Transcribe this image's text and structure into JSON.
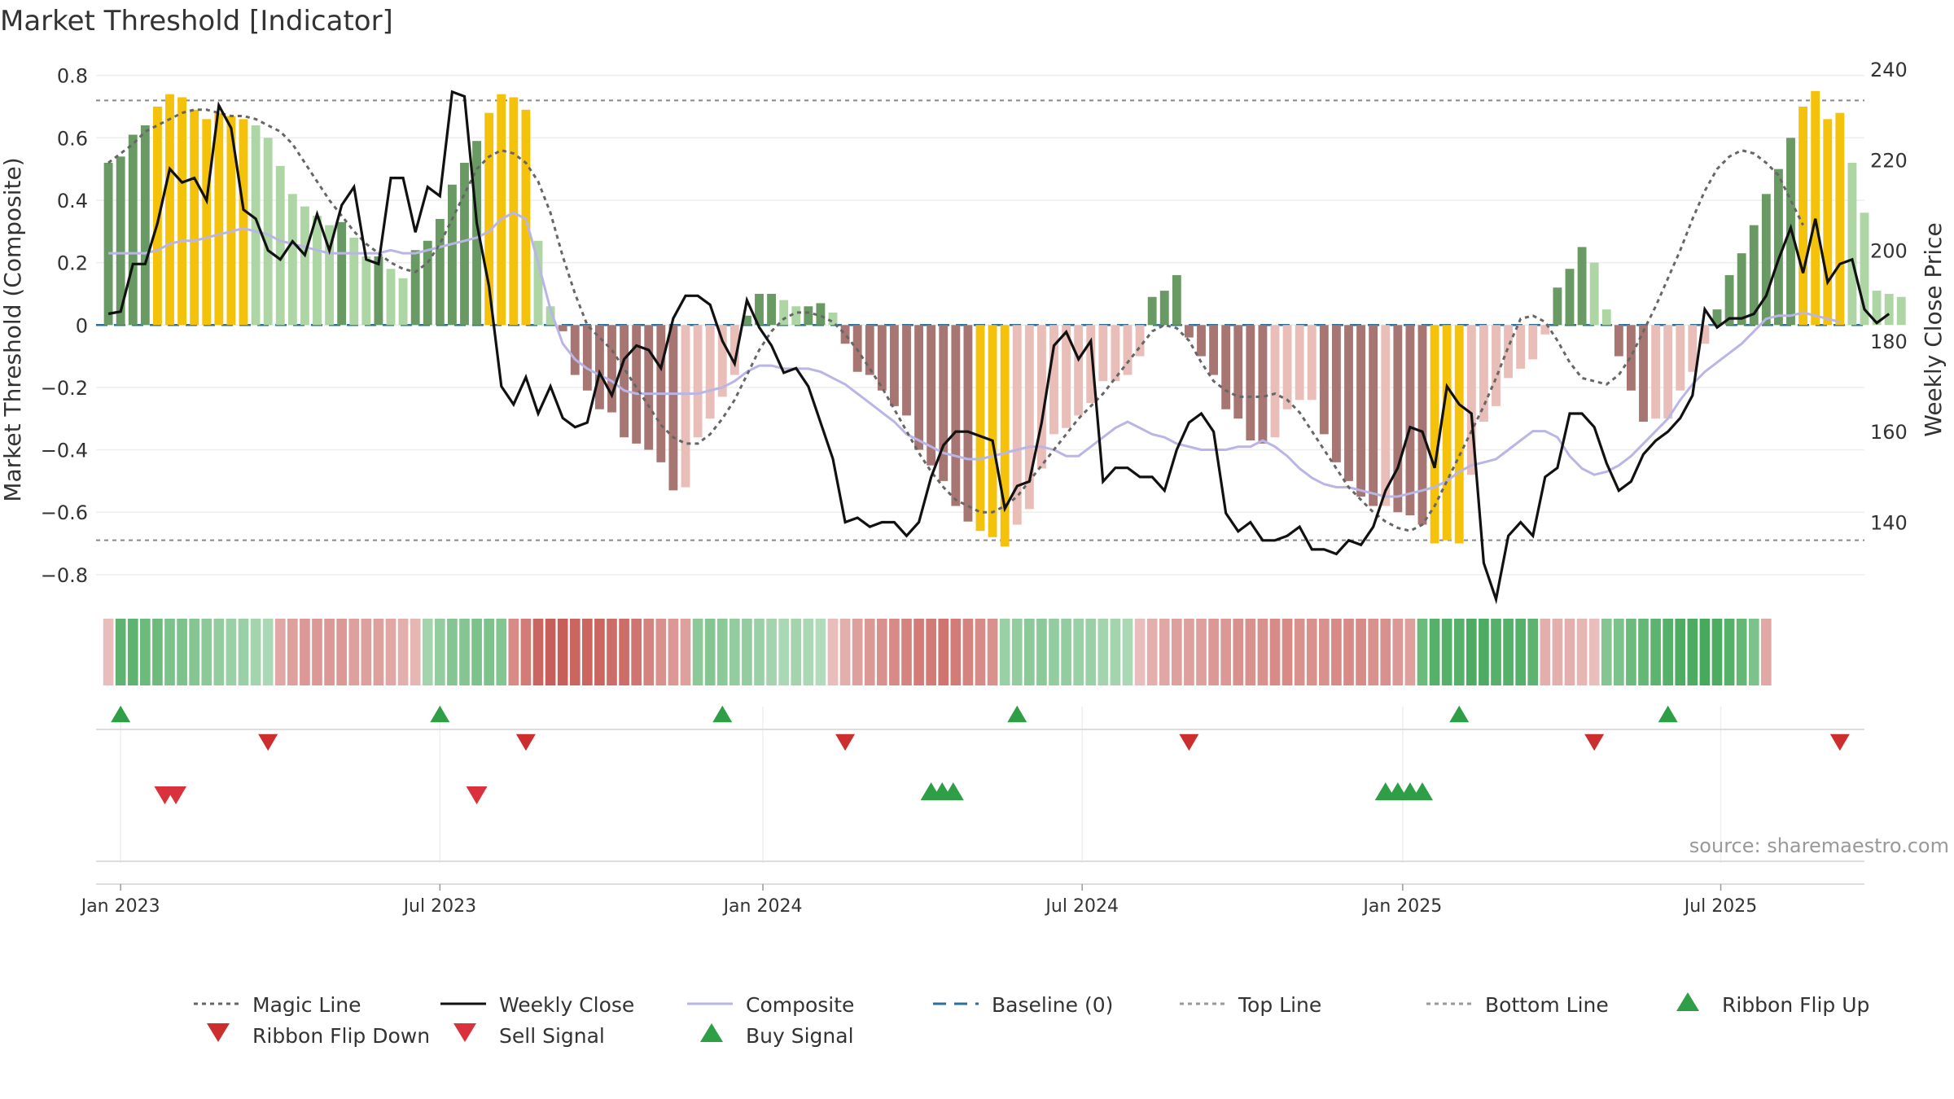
{
  "chart_data": {
    "type": "bar",
    "title": "Market Threshold [Indicator]",
    "ylabel": "Market Threshold (Composite)",
    "y2label": "Weekly Close Price",
    "ylim": [
      -0.85,
      0.82
    ],
    "y2lim": [
      125,
      240
    ],
    "yticks": [
      0.8,
      0.6,
      0.4,
      0.2,
      0,
      -0.2,
      -0.4,
      -0.6,
      -0.8
    ],
    "ytick_labels": [
      "0.8",
      "0.6",
      "0.4",
      "0.2",
      "0",
      "−0.2",
      "−0.4",
      "−0.6",
      "−0.8"
    ],
    "y2ticks": [
      240,
      220,
      200,
      180,
      160,
      140
    ],
    "y2tick_labels": [
      "240",
      "220",
      "200",
      "180",
      "160",
      "140"
    ],
    "xlim_weeks": [
      -2,
      142
    ],
    "xticks": [
      {
        "label": "Jan 2023",
        "week": 0
      },
      {
        "label": "Jul 2023",
        "week": 26
      },
      {
        "label": "Jan 2024",
        "week": 52.3
      },
      {
        "label": "Jul 2024",
        "week": 78.3
      },
      {
        "label": "Jan 2025",
        "week": 104.4
      },
      {
        "label": "Jul 2025",
        "week": 130.3
      }
    ],
    "top_line": 0.72,
    "bottom_line": -0.69,
    "source": "source: sharemaestro.com",
    "colors": {
      "green_dark": "#6a9a64",
      "green_light": "#add6a4",
      "red_dark": "#a87672",
      "red_light": "#e9bdb8",
      "gold": "#f5c20b",
      "close": "#111111",
      "composite": "#b9b5e6",
      "magic": "#666666",
      "baseline": "#2b6f9e",
      "threshold": "#888888",
      "buy": "#2e9e47",
      "sell": "#d9323c",
      "flip_up": "#2e9e47",
      "flip_down": "#cc2e2e"
    },
    "series": [
      {
        "name": "Market Threshold (bars)",
        "kind": "bar",
        "start_week": -1,
        "values": [
          0.52,
          0.54,
          0.61,
          0.64,
          0.7,
          0.74,
          0.73,
          0.69,
          0.66,
          0.68,
          0.67,
          0.66,
          0.64,
          0.6,
          0.51,
          0.42,
          0.38,
          0.35,
          0.32,
          0.33,
          0.28,
          0.22,
          0.22,
          0.18,
          0.15,
          0.24,
          0.27,
          0.34,
          0.45,
          0.52,
          0.59,
          0.68,
          0.74,
          0.73,
          0.69,
          0.27,
          0.06,
          -0.02,
          -0.16,
          -0.21,
          -0.27,
          -0.28,
          -0.36,
          -0.38,
          -0.4,
          -0.44,
          -0.53,
          -0.52,
          -0.36,
          -0.3,
          -0.23,
          -0.16,
          0.03,
          0.1,
          0.1,
          0.08,
          0.06,
          0.06,
          0.07,
          0.04,
          -0.06,
          -0.15,
          -0.16,
          -0.21,
          -0.26,
          -0.29,
          -0.4,
          -0.45,
          -0.5,
          -0.58,
          -0.63,
          -0.66,
          -0.68,
          -0.71,
          -0.64,
          -0.59,
          -0.46,
          -0.35,
          -0.33,
          -0.29,
          -0.25,
          -0.18,
          -0.18,
          -0.16,
          -0.1,
          0.09,
          0.11,
          0.16,
          -0.04,
          -0.1,
          -0.16,
          -0.27,
          -0.3,
          -0.37,
          -0.38,
          -0.36,
          -0.27,
          -0.24,
          -0.24,
          -0.35,
          -0.44,
          -0.5,
          -0.55,
          -0.58,
          -0.58,
          -0.6,
          -0.61,
          -0.64,
          -0.7,
          -0.69,
          -0.7,
          -0.48,
          -0.31,
          -0.26,
          -0.17,
          -0.14,
          -0.11,
          -0.03,
          0.12,
          0.18,
          0.25,
          0.2,
          0.05,
          -0.1,
          -0.21,
          -0.31,
          -0.3,
          -0.3,
          -0.21,
          -0.15,
          -0.06,
          0.05,
          0.16,
          0.23,
          0.32,
          0.42,
          0.5,
          0.6,
          0.7,
          0.75,
          0.66,
          0.68,
          0.52,
          0.36,
          0.11,
          0.1,
          0.09
        ]
      },
      {
        "name": "Magic Line",
        "kind": "line",
        "start_week": -1,
        "values": [
          0.52,
          0.55,
          0.58,
          0.62,
          0.64,
          0.66,
          0.68,
          0.69,
          0.69,
          0.68,
          0.67,
          0.67,
          0.66,
          0.64,
          0.62,
          0.58,
          0.52,
          0.46,
          0.4,
          0.35,
          0.3,
          0.26,
          0.23,
          0.2,
          0.18,
          0.17,
          0.2,
          0.26,
          0.34,
          0.42,
          0.5,
          0.54,
          0.56,
          0.55,
          0.52,
          0.46,
          0.36,
          0.22,
          0.1,
          0.0,
          -0.04,
          -0.08,
          -0.14,
          -0.2,
          -0.26,
          -0.32,
          -0.36,
          -0.38,
          -0.38,
          -0.35,
          -0.3,
          -0.24,
          -0.16,
          -0.08,
          -0.02,
          0.02,
          0.04,
          0.04,
          0.03,
          0.01,
          -0.03,
          -0.08,
          -0.14,
          -0.2,
          -0.27,
          -0.34,
          -0.41,
          -0.47,
          -0.52,
          -0.56,
          -0.58,
          -0.6,
          -0.6,
          -0.58,
          -0.55,
          -0.5,
          -0.45,
          -0.4,
          -0.35,
          -0.3,
          -0.26,
          -0.22,
          -0.17,
          -0.12,
          -0.07,
          -0.02,
          0.0,
          -0.01,
          -0.05,
          -0.12,
          -0.18,
          -0.21,
          -0.23,
          -0.23,
          -0.23,
          -0.22,
          -0.24,
          -0.28,
          -0.34,
          -0.4,
          -0.46,
          -0.52,
          -0.56,
          -0.6,
          -0.63,
          -0.65,
          -0.66,
          -0.64,
          -0.58,
          -0.5,
          -0.42,
          -0.34,
          -0.26,
          -0.17,
          -0.07,
          0.02,
          0.03,
          0.01,
          -0.05,
          -0.12,
          -0.17,
          -0.18,
          -0.19,
          -0.16,
          -0.1,
          -0.02,
          0.06,
          0.15,
          0.24,
          0.34,
          0.43,
          0.5,
          0.54,
          0.56,
          0.55,
          0.52,
          0.48,
          0.4,
          0.32
        ]
      },
      {
        "name": "Weekly Close",
        "kind": "line",
        "axis": "y2",
        "start_week": -1,
        "values": [
          186,
          186.5,
          197,
          197,
          206,
          218,
          215,
          216,
          211,
          232,
          227,
          209,
          207,
          200,
          198,
          202,
          199,
          208,
          200,
          210,
          214,
          198,
          197,
          216,
          216,
          204,
          214,
          212,
          235,
          234,
          206,
          192,
          170,
          166,
          172,
          164,
          170,
          163,
          161,
          162,
          173,
          168,
          176,
          179,
          178,
          174,
          185,
          190,
          190,
          188,
          180,
          175,
          189,
          183,
          179,
          173,
          174,
          170,
          162,
          154,
          140,
          141,
          139,
          140,
          140,
          137,
          140,
          150,
          157,
          160,
          160,
          159,
          158,
          143,
          148,
          149,
          162,
          179,
          182,
          176,
          180,
          149,
          152,
          152,
          150,
          150,
          147,
          156,
          162,
          164,
          160,
          142,
          138,
          140,
          136,
          136,
          137,
          139,
          134,
          134,
          133,
          136,
          135,
          139,
          147,
          152,
          161,
          160,
          152,
          170,
          166,
          164,
          131,
          123,
          137,
          140,
          137,
          150,
          152,
          164,
          164,
          161,
          153,
          147,
          149,
          155,
          158,
          160,
          163,
          168,
          187,
          183,
          185,
          185,
          186,
          190,
          198,
          205,
          195,
          207,
          193,
          197,
          198,
          187,
          184,
          186
        ]
      },
      {
        "name": "Composite",
        "kind": "line",
        "start_week": -1,
        "values": [
          0.23,
          0.23,
          0.23,
          0.23,
          0.24,
          0.26,
          0.27,
          0.27,
          0.28,
          0.29,
          0.3,
          0.31,
          0.3,
          0.29,
          0.27,
          0.26,
          0.25,
          0.24,
          0.23,
          0.23,
          0.23,
          0.23,
          0.23,
          0.24,
          0.23,
          0.23,
          0.24,
          0.25,
          0.26,
          0.27,
          0.28,
          0.3,
          0.34,
          0.36,
          0.34,
          0.2,
          0.05,
          -0.06,
          -0.11,
          -0.14,
          -0.16,
          -0.18,
          -0.21,
          -0.22,
          -0.22,
          -0.22,
          -0.22,
          -0.22,
          -0.22,
          -0.21,
          -0.2,
          -0.18,
          -0.15,
          -0.13,
          -0.13,
          -0.14,
          -0.14,
          -0.14,
          -0.15,
          -0.17,
          -0.19,
          -0.22,
          -0.25,
          -0.28,
          -0.31,
          -0.35,
          -0.37,
          -0.39,
          -0.41,
          -0.42,
          -0.43,
          -0.43,
          -0.42,
          -0.41,
          -0.4,
          -0.39,
          -0.39,
          -0.4,
          -0.42,
          -0.42,
          -0.39,
          -0.36,
          -0.33,
          -0.31,
          -0.33,
          -0.35,
          -0.36,
          -0.38,
          -0.39,
          -0.4,
          -0.4,
          -0.4,
          -0.39,
          -0.39,
          -0.37,
          -0.39,
          -0.42,
          -0.46,
          -0.49,
          -0.51,
          -0.52,
          -0.52,
          -0.53,
          -0.54,
          -0.55,
          -0.55,
          -0.54,
          -0.53,
          -0.52,
          -0.5,
          -0.47,
          -0.45,
          -0.44,
          -0.43,
          -0.4,
          -0.37,
          -0.34,
          -0.34,
          -0.36,
          -0.42,
          -0.46,
          -0.48,
          -0.47,
          -0.45,
          -0.42,
          -0.38,
          -0.34,
          -0.3,
          -0.24,
          -0.19,
          -0.15,
          -0.12,
          -0.09,
          -0.06,
          -0.02,
          0.02,
          0.03,
          0.03,
          0.04,
          0.03,
          0.02,
          0.01
        ]
      },
      {
        "name": "Sentiment Ribbon",
        "kind": "ribbon",
        "start_week": -1,
        "values": [
          -0.2,
          0.8,
          0.8,
          0.7,
          0.7,
          0.6,
          0.6,
          0.55,
          0.5,
          0.45,
          0.4,
          0.4,
          0.35,
          0.3,
          -0.35,
          -0.4,
          -0.45,
          -0.45,
          -0.45,
          -0.45,
          -0.4,
          -0.4,
          -0.4,
          -0.35,
          -0.3,
          -0.25,
          0.35,
          0.45,
          0.55,
          0.55,
          0.6,
          0.6,
          0.55,
          -0.55,
          -0.65,
          -0.8,
          -0.85,
          -0.85,
          -0.8,
          -0.8,
          -0.8,
          -0.75,
          -0.75,
          -0.7,
          -0.6,
          -0.5,
          -0.45,
          -0.4,
          0.5,
          0.55,
          0.5,
          0.45,
          0.45,
          0.4,
          0.35,
          0.3,
          0.35,
          0.3,
          0.25,
          -0.2,
          -0.3,
          -0.4,
          -0.45,
          -0.5,
          -0.55,
          -0.6,
          -0.65,
          -0.65,
          -0.7,
          -0.65,
          -0.6,
          -0.55,
          -0.5,
          0.4,
          0.45,
          0.5,
          0.5,
          0.45,
          0.45,
          0.4,
          0.4,
          0.35,
          0.35,
          0.3,
          -0.2,
          -0.3,
          -0.35,
          -0.4,
          -0.4,
          -0.4,
          -0.45,
          -0.45,
          -0.5,
          -0.5,
          -0.5,
          -0.55,
          -0.55,
          -0.5,
          -0.5,
          -0.5,
          -0.55,
          -0.55,
          -0.55,
          -0.5,
          -0.5,
          -0.45,
          -0.4,
          0.7,
          0.85,
          0.85,
          0.85,
          0.9,
          0.9,
          0.85,
          0.85,
          0.85,
          0.8,
          -0.3,
          -0.3,
          -0.3,
          -0.25,
          -0.2,
          0.55,
          0.6,
          0.7,
          0.75,
          0.8,
          0.85,
          0.9,
          0.9,
          0.95,
          0.9,
          0.85,
          0.75,
          0.6,
          -0.35
        ]
      }
    ],
    "ribbon_flip_up_weeks": [
      0,
      26,
      49,
      73,
      109,
      126
    ],
    "ribbon_flip_down_weeks": [
      12,
      33,
      59,
      87,
      120,
      140
    ],
    "sell_signal_weeks": [
      3.6,
      4.5,
      29
    ],
    "buy_signal_weeks": [
      66,
      66.9,
      67.8,
      103,
      104,
      105,
      106
    ],
    "legend": [
      "Magic Line",
      "Weekly Close",
      "Composite",
      "Baseline (0)",
      "Top Line",
      "Bottom Line",
      "Ribbon Flip Up",
      "Ribbon Flip Down",
      "Sell Signal",
      "Buy Signal"
    ]
  }
}
